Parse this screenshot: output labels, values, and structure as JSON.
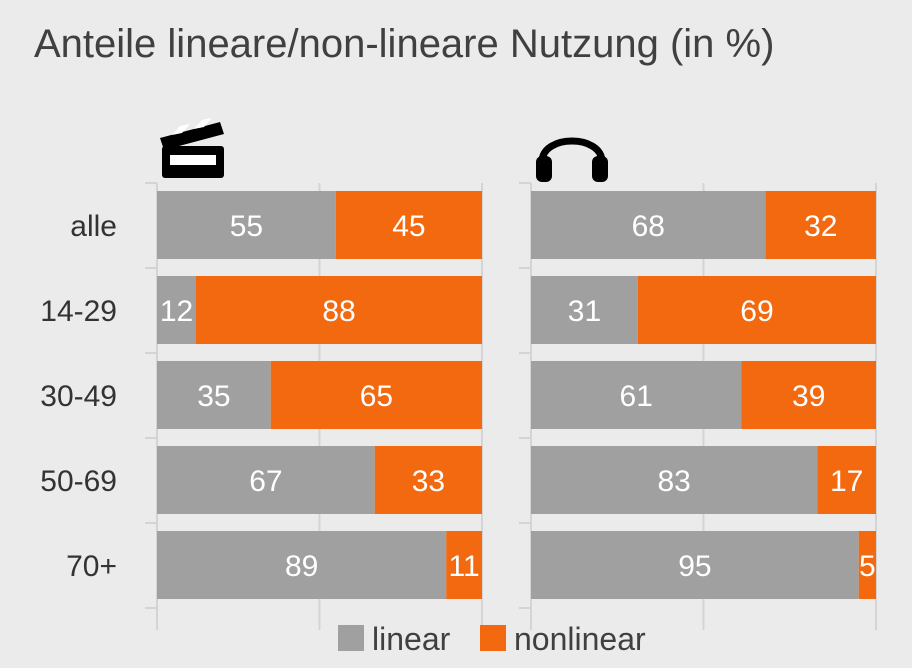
{
  "chart_data": {
    "type": "bar",
    "orientation": "horizontal",
    "stacked": true,
    "title": "Anteile lineare/non-lineare Nutzung (in %)",
    "categories": [
      "alle",
      "14-29",
      "30-49",
      "50-69",
      "70+"
    ],
    "panels": [
      {
        "icon": "film-clapperboard-icon",
        "series": [
          {
            "name": "linear",
            "values": [
              55,
              12,
              35,
              67,
              89
            ]
          },
          {
            "name": "nonlinear",
            "values": [
              45,
              88,
              65,
              33,
              11
            ]
          }
        ]
      },
      {
        "icon": "headphones-icon",
        "series": [
          {
            "name": "linear",
            "values": [
              68,
              31,
              61,
              83,
              95
            ]
          },
          {
            "name": "nonlinear",
            "values": [
              32,
              69,
              39,
              17,
              5
            ]
          }
        ]
      }
    ],
    "xlim": [
      0,
      100
    ],
    "grid": true,
    "legend_position": "bottom",
    "colors": {
      "linear": "#a0a0a0",
      "nonlinear": "#f2690f",
      "grid": "#d4d4d4",
      "background": "#ebebeb"
    }
  }
}
